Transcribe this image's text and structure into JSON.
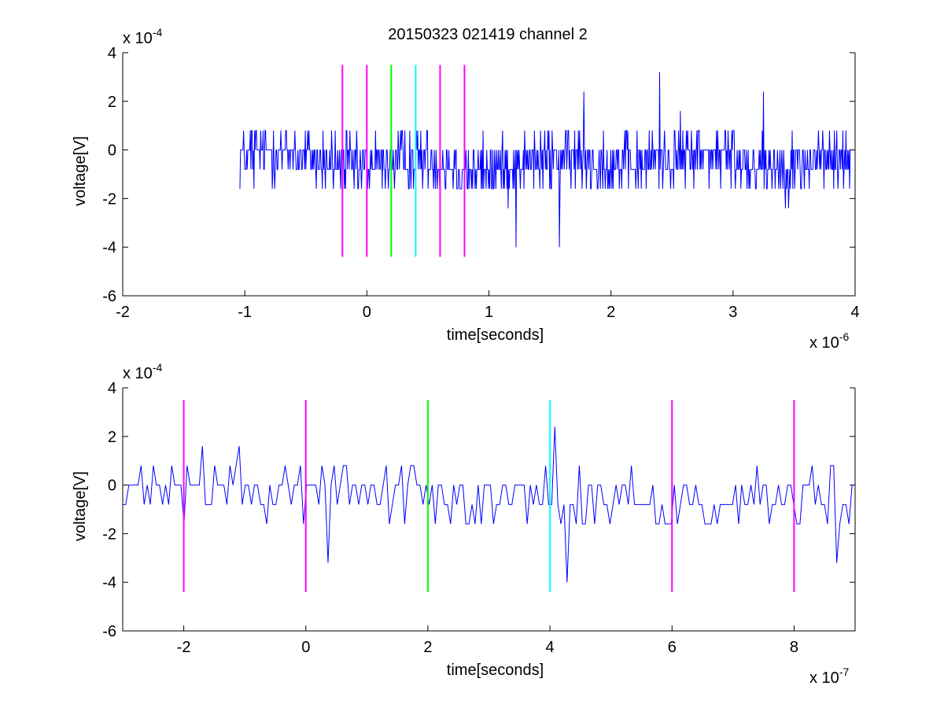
{
  "figure": {
    "title": "20150323 021419 channel 2"
  },
  "chart_data": [
    {
      "type": "line",
      "title": "20150323 021419 channel 2",
      "xlabel": "time[seconds]",
      "ylabel": "voltage[V]",
      "x_exponent_label": "x 10",
      "x_exponent": "-6",
      "y_exponent_label": "x 10",
      "y_exponent": "-4",
      "xlim": [
        -2e-06,
        4e-06
      ],
      "ylim": [
        -0.0006,
        0.0004
      ],
      "xticks": [
        -2,
        -1,
        0,
        1,
        2,
        3,
        4
      ],
      "yticks": [
        -6,
        -4,
        -2,
        0,
        2,
        4
      ],
      "grid": false,
      "signal": {
        "color": "#0000ff",
        "x_start": -1.04e-06,
        "x_end": 3.96e-06,
        "n_points": 1000,
        "quantum": 8e-05,
        "notable_points": [
          {
            "x": 2.4e-06,
            "y": 0.00032
          },
          {
            "x": 1.78e-06,
            "y": 0.00024
          },
          {
            "x": 3.25e-06,
            "y": 0.00024
          },
          {
            "x": 1.22e-06,
            "y": -0.0004
          },
          {
            "x": 1.58e-06,
            "y": -0.0004
          }
        ]
      },
      "markers": [
        {
          "x": -2e-07,
          "color": "#ff00ff"
        },
        {
          "x": 0,
          "color": "#ff00ff"
        },
        {
          "x": 2e-07,
          "color": "#00ff00"
        },
        {
          "x": 4e-07,
          "color": "#00ffff"
        },
        {
          "x": 6e-07,
          "color": "#ff00ff"
        },
        {
          "x": 8e-07,
          "color": "#ff00ff"
        }
      ],
      "marker_range": [
        -0.00044,
        0.00035
      ]
    },
    {
      "type": "line",
      "xlabel": "time[seconds]",
      "ylabel": "voltage[V]",
      "x_exponent_label": "x 10",
      "x_exponent": "-7",
      "y_exponent_label": "x 10",
      "y_exponent": "-4",
      "xlim": [
        -3e-07,
        9e-07
      ],
      "ylim": [
        -0.0006,
        0.0004
      ],
      "xticks": [
        -2,
        0,
        2,
        4,
        6,
        8
      ],
      "yticks": [
        -6,
        -4,
        -2,
        0,
        2,
        4
      ],
      "grid": false,
      "signal": {
        "color": "#0000ff",
        "x_start": -3e-07,
        "x_end": 9e-07,
        "n_points": 240,
        "quantum": 8e-05,
        "notable_points": [
          {
            "x": 4.1e-07,
            "y": 0.00024
          },
          {
            "x": 4.3e-07,
            "y": -0.0004
          },
          {
            "x": 3.6e-08,
            "y": -0.00032
          },
          {
            "x": 8.7e-07,
            "y": -0.00032
          }
        ]
      },
      "markers": [
        {
          "x": -2e-07,
          "color": "#ff00ff"
        },
        {
          "x": 0,
          "color": "#ff00ff"
        },
        {
          "x": 2e-07,
          "color": "#00ff00"
        },
        {
          "x": 4e-07,
          "color": "#00ffff"
        },
        {
          "x": 6e-07,
          "color": "#ff00ff"
        },
        {
          "x": 8e-07,
          "color": "#ff00ff"
        }
      ],
      "marker_range": [
        -0.00044,
        0.00035
      ]
    }
  ]
}
